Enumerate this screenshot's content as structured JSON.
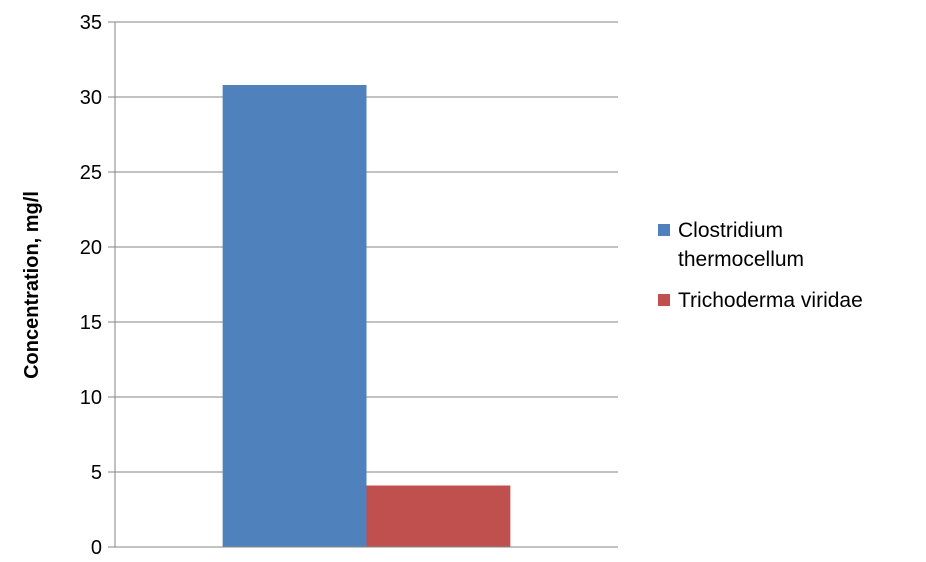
{
  "chart_data": {
    "type": "bar",
    "title": "",
    "xlabel": "",
    "ylabel": "Concentration, mg/l",
    "ylim": [
      0,
      35
    ],
    "yticks": [
      0,
      5,
      10,
      15,
      20,
      25,
      30,
      35
    ],
    "grid": true,
    "legend": "right",
    "categories": [
      ""
    ],
    "series": [
      {
        "name": "Clostridium thermocellum",
        "values": [
          30.8
        ],
        "color": "#4f81bd",
        "legend_lines": [
          "Clostridium",
          "thermocellum"
        ]
      },
      {
        "name": "Trichoderma viridae",
        "values": [
          4.1
        ],
        "color": "#c0504d",
        "legend_lines": [
          "Trichoderma viridae"
        ]
      }
    ]
  }
}
